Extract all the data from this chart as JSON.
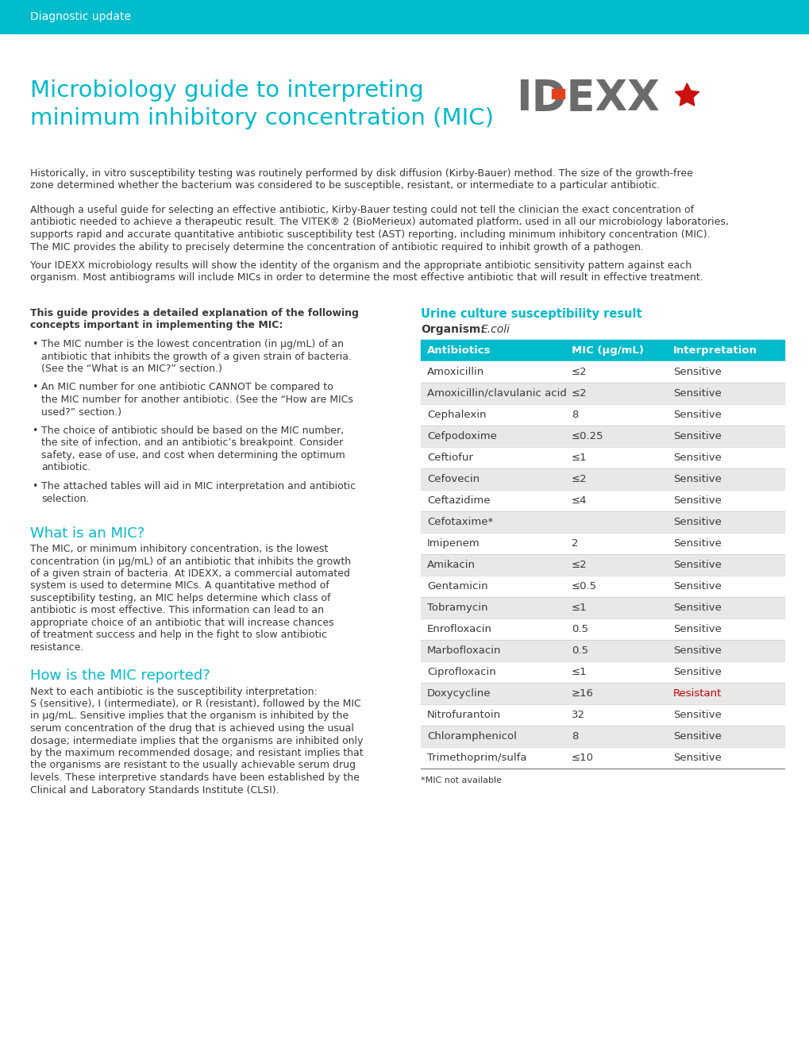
{
  "header_bg_color": "#00BBCC",
  "header_text": "Diagnostic update",
  "header_text_color": "#FFFFFF",
  "header_font_size": 10,
  "title_line1": "Microbiology guide to interpreting",
  "title_line2": "minimum inhibitory concentration (MIC)",
  "title_color": "#00BBCC",
  "title_font_size": 21,
  "body_bg_color": "#FFFFFF",
  "body_text_color": "#3a3a3a",
  "teal_color": "#00BBCC",
  "para1": "Historically, in vitro susceptibility testing was routinely performed by disk diffusion (Kirby-Bauer) method. The size of the growth-free\nzone determined whether the bacterium was considered to be susceptible, resistant, or intermediate to a particular antibiotic.",
  "para2_line1": "Although a useful guide for selecting an effective antibiotic, Kirby-Bauer testing could not tell the clinician the exact concentration of",
  "para2_line2": "antibiotic needed to achieve a therapeutic result. The VITEK® 2 (BioMerieux) automated platform, used in all our microbiology laboratories,",
  "para2_line3": "supports rapid and accurate quantitative antibiotic susceptibility test (AST) reporting, including minimum inhibitory concentration (MIC).",
  "para2_line4": "The MIC provides the ability to precisely determine the concentration of antibiotic required to inhibit growth of a pathogen.",
  "para3_line1": "Your IDEXX microbiology results will show the identity of the organism and the appropriate antibiotic sensitivity pattern against each",
  "para3_line2": "organism. Most antibiograms will include MICs in order to determine the most effective antibiotic that will result in effective treatment.",
  "guide_title_line1": "This guide provides a detailed explanation of the following",
  "guide_title_line2": "concepts important in implementing the MIC:",
  "bullet1_lines": [
    "The MIC number is the lowest concentration (in μg/mL) of an",
    "antibiotic that inhibits the growth of a given strain of bacteria.",
    "(See the “What is an MIC?” section.)"
  ],
  "bullet2_lines": [
    "An MIC number for one antibiotic CANNOT be compared to",
    "the MIC number for another antibiotic. (See the “How are MICs",
    "used?” section.)"
  ],
  "bullet3_lines": [
    "The choice of antibiotic should be based on the MIC number,",
    "the site of infection, and an antibiotic’s breakpoint. Consider",
    "safety, ease of use, and cost when determining the optimum",
    "antibiotic."
  ],
  "bullet4_lines": [
    "The attached tables will aid in MIC interpretation and antibiotic",
    "selection."
  ],
  "section1_title": "What is an MIC?",
  "section1_lines": [
    "The MIC, or minimum inhibitory concentration, is the lowest",
    "concentration (in μg/mL) of an antibiotic that inhibits the growth",
    "of a given strain of bacteria. At IDEXX, a commercial automated",
    "system is used to determine MICs. A quantitative method of",
    "susceptibility testing, an MIC helps determine which class of",
    "antibiotic is most effective. This information can lead to an",
    "appropriate choice of an antibiotic that will increase chances",
    "of treatment success and help in the fight to slow antibiotic",
    "resistance."
  ],
  "section2_title": "How is the MIC reported?",
  "section2_lines": [
    "Next to each antibiotic is the susceptibility interpretation:",
    "S (sensitive), I (intermediate), or R (resistant), followed by the MIC",
    "in μg/mL. Sensitive implies that the organism is inhibited by the",
    "serum concentration of the drug that is achieved using the usual",
    "dosage; intermediate implies that the organisms are inhibited only",
    "by the maximum recommended dosage; and resistant implies that",
    "the organisms are resistant to the usually achievable serum drug",
    "levels. These interpretive standards have been established by the",
    "Clinical and Laboratory Standards Institute (CLSI)."
  ],
  "table_title": "Urine culture susceptibility result",
  "organism_label": "Organism:",
  "organism_name": "E.coli",
  "table_header": [
    "Antibiotics",
    "MIC (μg/mL)",
    "Interpretation"
  ],
  "table_header_bg": "#00BBCC",
  "table_header_color": "#FFFFFF",
  "table_rows": [
    [
      "Amoxicillin",
      "≤2",
      "Sensitive"
    ],
    [
      "Amoxicillin/clavulanic acid",
      "≤2",
      "Sensitive"
    ],
    [
      "Cephalexin",
      "8",
      "Sensitive"
    ],
    [
      "Cefpodoxime",
      "≤0.25",
      "Sensitive"
    ],
    [
      "Ceftiofur",
      "≤1",
      "Sensitive"
    ],
    [
      "Cefovecin",
      "≤2",
      "Sensitive"
    ],
    [
      "Ceftazidime",
      "≤4",
      "Sensitive"
    ],
    [
      "Cefotaxime*",
      "",
      "Sensitive"
    ],
    [
      "Imipenem",
      "2",
      "Sensitive"
    ],
    [
      "Amikacin",
      "≤2",
      "Sensitive"
    ],
    [
      "Gentamicin",
      "≤0.5",
      "Sensitive"
    ],
    [
      "Tobramycin",
      "≤1",
      "Sensitive"
    ],
    [
      "Enrofloxacin",
      "0.5",
      "Sensitive"
    ],
    [
      "Marbofloxacin",
      "0.5",
      "Sensitive"
    ],
    [
      "Ciprofloxacin",
      "≤1",
      "Sensitive"
    ],
    [
      "Doxycycline",
      "≥16",
      "Resistant"
    ],
    [
      "Nitrofurantoin",
      "32",
      "Sensitive"
    ],
    [
      "Chloramphenicol",
      "8",
      "Sensitive"
    ],
    [
      "Trimethoprim/sulfa",
      "≤10",
      "Sensitive"
    ]
  ],
  "row_alt_color": "#E8E8E8",
  "row_white_color": "#FFFFFF",
  "footnote": "*MIC not available",
  "resistant_color": "#CC0000"
}
